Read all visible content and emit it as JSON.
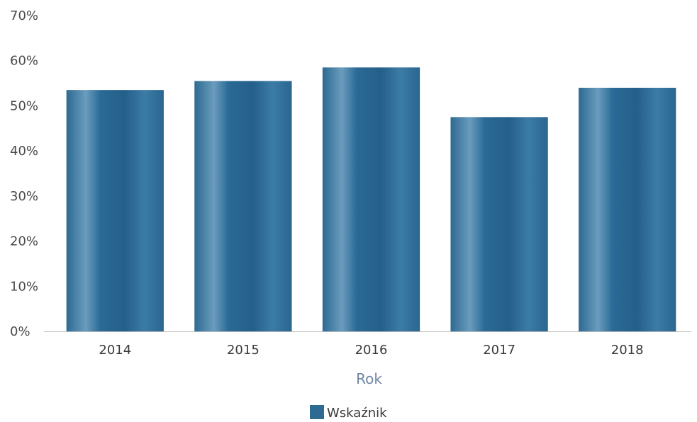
{
  "chart_data": {
    "type": "bar",
    "categories": [
      "2014",
      "2015",
      "2016",
      "2017",
      "2018"
    ],
    "series": [
      {
        "name": "Wskaźnik",
        "values": [
          53.5,
          55.5,
          58.5,
          47.5,
          54.0
        ]
      }
    ],
    "yticks": [
      "0%",
      "10%",
      "20%",
      "30%",
      "40%",
      "50%",
      "60%",
      "70%"
    ],
    "ylim": [
      0,
      70
    ],
    "xlabel": "Rok",
    "ylabel": "",
    "legend_position": "bottom-center",
    "grid": false,
    "colors": {
      "bar": "#2e6a92",
      "bar_light": "#5b8fb3",
      "axis": "#bdbdbd"
    }
  }
}
